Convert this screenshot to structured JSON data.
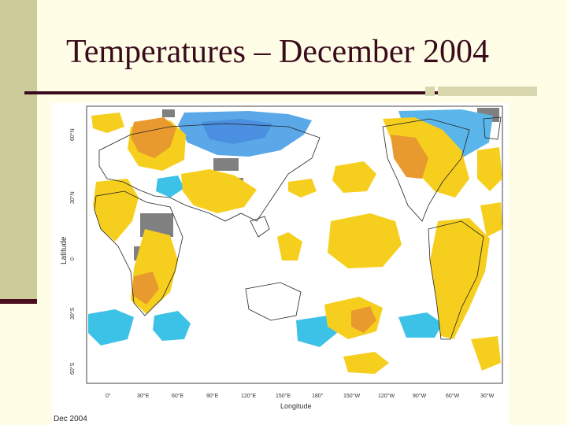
{
  "slide": {
    "title": "Temperatures – December 2004"
  },
  "map": {
    "y_axis_label": "Latitude",
    "x_axis_label": "Longitude",
    "lat_ticks": [
      "60°N",
      "30°N",
      "0",
      "30°S",
      "60°S"
    ],
    "lon_ticks": [
      "0°",
      "30°E",
      "60°E",
      "90°E",
      "120°E",
      "150°E",
      "180°",
      "150°W",
      "120°W",
      "90°W",
      "60°W",
      "30°W"
    ],
    "caption": "Dec 2004",
    "colors": {
      "warm_strong": "#e99a2f",
      "warm": "#f6cf1e",
      "cold": "#3cc2e6",
      "cold_strong": "#5aa8e8",
      "missing": "#808080",
      "land_outline": "#222222"
    }
  }
}
